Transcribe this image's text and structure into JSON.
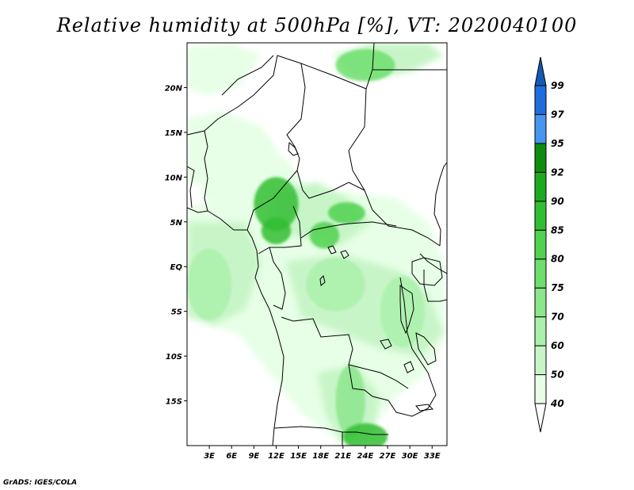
{
  "title": "Relative humidity at 500hPa [%], VT: 2020040100",
  "credit": "GrADS: IGES/COLA",
  "map": {
    "lon_range": [
      0,
      35
    ],
    "lat_range": [
      -20,
      25
    ],
    "lat_ticks": [
      {
        "value": 20,
        "label": "20N"
      },
      {
        "value": 15,
        "label": "15N"
      },
      {
        "value": 10,
        "label": "10N"
      },
      {
        "value": 5,
        "label": "5N"
      },
      {
        "value": 0,
        "label": "EQ"
      },
      {
        "value": -5,
        "label": "5S"
      },
      {
        "value": -10,
        "label": "10S"
      },
      {
        "value": -15,
        "label": "15S"
      }
    ],
    "lon_ticks": [
      {
        "value": 3,
        "label": "3E"
      },
      {
        "value": 6,
        "label": "6E"
      },
      {
        "value": 9,
        "label": "9E"
      },
      {
        "value": 12,
        "label": "12E"
      },
      {
        "value": 15,
        "label": "15E"
      },
      {
        "value": 18,
        "label": "18E"
      },
      {
        "value": 21,
        "label": "21E"
      },
      {
        "value": 24,
        "label": "24E"
      },
      {
        "value": 27,
        "label": "27E"
      },
      {
        "value": 30,
        "label": "30E"
      },
      {
        "value": 33,
        "label": "33E"
      }
    ]
  },
  "colorbar": {
    "levels": [
      "40",
      "50",
      "60",
      "70",
      "75",
      "80",
      "85",
      "90",
      "92",
      "95",
      "97",
      "99"
    ],
    "colors": [
      "#ffffff",
      "#e6ffe6",
      "#c8f5c8",
      "#aaf0aa",
      "#8ce68c",
      "#6ede6e",
      "#50d250",
      "#32be32",
      "#1eaa1e",
      "#0f8c0f",
      "#4696ee",
      "#1e6ee0",
      "#145ab4"
    ]
  },
  "chart_data": {
    "type": "heatmap",
    "title": "Relative humidity at 500hPa [%], VT: 2020040100",
    "variable": "Relative humidity at 500hPa [%]",
    "valid_time": "2020040100",
    "x_range": [
      0,
      35
    ],
    "y_range": [
      -20,
      25
    ],
    "x_ticks": [
      "3E",
      "6E",
      "9E",
      "12E",
      "15E",
      "18E",
      "21E",
      "24E",
      "27E",
      "30E",
      "33E"
    ],
    "y_ticks": [
      "20N",
      "15N",
      "10N",
      "5N",
      "EQ",
      "5S",
      "10S",
      "15S"
    ],
    "colorbar_levels": [
      40,
      50,
      60,
      70,
      75,
      80,
      85,
      90,
      92,
      95,
      97,
      99
    ],
    "humid_regions": [
      {
        "lon": 24,
        "lat": 22.5,
        "rx": 4,
        "ry": 1.8,
        "value": 75
      },
      {
        "lon": 12,
        "lat": 7,
        "rx": 3,
        "ry": 3,
        "value": 85
      },
      {
        "lon": 12,
        "lat": 4,
        "rx": 2,
        "ry": 1.5,
        "value": 85
      },
      {
        "lon": 21.5,
        "lat": 6,
        "rx": 2.5,
        "ry": 1.2,
        "value": 80
      },
      {
        "lon": 18.5,
        "lat": 3.5,
        "rx": 2,
        "ry": 1.5,
        "value": 80
      },
      {
        "lon": 3,
        "lat": -2,
        "rx": 3,
        "ry": 4,
        "value": 60
      },
      {
        "lon": 22,
        "lat": -15,
        "rx": 2,
        "ry": 4,
        "value": 70
      },
      {
        "lon": 24,
        "lat": -19,
        "rx": 3,
        "ry": 1.5,
        "value": 85
      },
      {
        "lon": 29,
        "lat": -5,
        "rx": 3,
        "ry": 4,
        "value": 65
      },
      {
        "lon": 20,
        "lat": -2,
        "rx": 4,
        "ry": 3,
        "value": 60
      }
    ]
  }
}
